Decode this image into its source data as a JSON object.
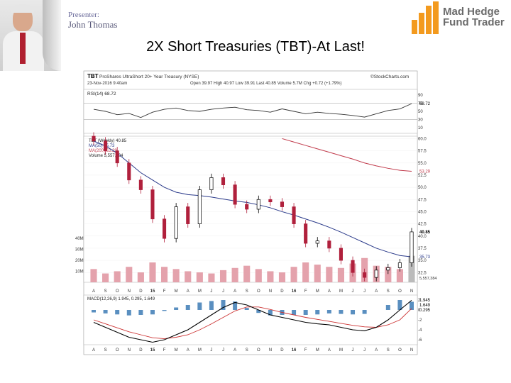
{
  "header": {
    "presenter_label": "Presenter:",
    "presenter_name": "John Thomas",
    "logo_line1": "Mad Hedge",
    "logo_line2": "Fund Trader"
  },
  "slide": {
    "title": "2X Short Treasuries (TBT)-At Last!"
  },
  "colors": {
    "price_up": "#000000",
    "price_down": "#b0203c",
    "ma50": "#2a3a8a",
    "ma200": "#c0394a",
    "volume": "#e4a2ac",
    "rsi": "#333333",
    "macd": "#000000",
    "macd_signal": "#cc3333",
    "histogram": "#5a8fc0",
    "logo_orange": "#f39a1e"
  },
  "chart_data": {
    "type": "line",
    "source": "©StockCharts.com",
    "ticker": "TBT",
    "name": "ProShares UltraShort 20+ Year Treasury (NYSE)",
    "date": "23-Nov-2016 9:40am",
    "quote": {
      "open": "39.97",
      "high": "40.97",
      "low": "39.91",
      "last": "40.85",
      "volume": "5.7M",
      "chg": "+0.72 (+1.79%)"
    },
    "rsi_panel": {
      "label": "RSI(14) 68.72",
      "ticks": [
        "90",
        "70",
        "50",
        "30",
        "10"
      ],
      "last_label": "68.72",
      "x": [
        "A",
        "S",
        "O",
        "N",
        "D",
        "15",
        "F",
        "M",
        "A",
        "M",
        "J",
        "J",
        "A",
        "S",
        "O",
        "N",
        "D",
        "16",
        "F",
        "M",
        "A",
        "M",
        "J",
        "J",
        "A",
        "S",
        "O",
        "N"
      ],
      "values": [
        55,
        50,
        42,
        45,
        35,
        48,
        55,
        58,
        52,
        50,
        55,
        58,
        60,
        54,
        52,
        48,
        56,
        50,
        44,
        48,
        45,
        43,
        40,
        36,
        44,
        52,
        56,
        68.72
      ]
    },
    "price_panel": {
      "legend": [
        "TBT (Weekly) 40.85",
        "MA(50) 35.73",
        "MA(200) 53.29",
        "Volume 5,557,384"
      ],
      "ticks": [
        "60.0",
        "57.5",
        "55.0",
        "52.5",
        "50.0",
        "47.5",
        "45.0",
        "42.5",
        "40.0",
        "37.5",
        "35.0",
        "32.5"
      ],
      "last_price_label": "40.85",
      "ma50_label": "35.73",
      "ma200_label": "53.29",
      "volume_label": "5,557,384",
      "volume_ticks": [
        "40M",
        "30M",
        "20M",
        "10M"
      ],
      "ylim": [
        30.5,
        60.5
      ],
      "x": [
        "A",
        "S",
        "O",
        "N",
        "D",
        "15",
        "F",
        "M",
        "A",
        "M",
        "J",
        "J",
        "A",
        "S",
        "O",
        "N",
        "D",
        "16",
        "F",
        "M",
        "A",
        "M",
        "J",
        "J",
        "A",
        "S",
        "O",
        "N"
      ],
      "close": [
        59.5,
        57.5,
        55.0,
        51.5,
        49.5,
        43.5,
        39.5,
        46.0,
        42.5,
        49.5,
        52.0,
        50.5,
        46.5,
        45.5,
        47.5,
        47.0,
        46.0,
        42.5,
        38.5,
        39.0,
        37.5,
        35.0,
        32.5,
        31.5,
        33.0,
        33.5,
        34.5,
        40.85
      ],
      "ma50": [
        59.5,
        58.5,
        57.0,
        55.0,
        53.0,
        51.5,
        50.0,
        49.0,
        48.5,
        48.3,
        48.0,
        47.6,
        47.2,
        46.9,
        46.4,
        45.8,
        45.0,
        44.3,
        43.5,
        42.7,
        41.8,
        40.8,
        39.7,
        38.6,
        37.5,
        36.7,
        36.0,
        35.73
      ],
      "ma200": [
        null,
        null,
        null,
        null,
        null,
        null,
        null,
        null,
        null,
        null,
        null,
        null,
        null,
        null,
        null,
        null,
        60.0,
        59.3,
        58.6,
        57.9,
        57.2,
        56.5,
        55.8,
        55.0,
        54.4,
        53.9,
        53.5,
        53.29
      ],
      "volume_millions": [
        12,
        8,
        10,
        14,
        9,
        18,
        14,
        12,
        10,
        9,
        8,
        11,
        13,
        15,
        12,
        10,
        9,
        14,
        18,
        16,
        14,
        13,
        17,
        22,
        15,
        14,
        12,
        24
      ]
    },
    "macd_panel": {
      "label": "MACD(12,26,9) 1.945, 0.295, 1.649",
      "ticks": [
        "2",
        "0",
        "-2",
        "-4",
        "-6"
      ],
      "last_labels": [
        "1.945",
        "1.649",
        "0.295"
      ],
      "x": [
        "A",
        "S",
        "O",
        "N",
        "D",
        "15",
        "F",
        "M",
        "A",
        "M",
        "J",
        "J",
        "A",
        "S",
        "O",
        "N",
        "D",
        "16",
        "F",
        "M",
        "A",
        "M",
        "J",
        "J",
        "A",
        "S",
        "O",
        "N"
      ],
      "macd": [
        -2.5,
        -3.5,
        -4.5,
        -5.5,
        -6.0,
        -6.5,
        -6.0,
        -5.0,
        -4.0,
        -2.5,
        -1.0,
        0.5,
        1.5,
        1.0,
        0.0,
        -1.0,
        -1.5,
        -2.0,
        -2.5,
        -2.8,
        -3.0,
        -3.5,
        -4.0,
        -4.2,
        -3.5,
        -2.0,
        0.0,
        1.945
      ],
      "signal": [
        -2.0,
        -2.8,
        -3.6,
        -4.4,
        -5.0,
        -5.6,
        -5.8,
        -5.5,
        -5.0,
        -4.0,
        -2.8,
        -1.5,
        -0.2,
        0.6,
        0.6,
        0.1,
        -0.5,
        -1.0,
        -1.5,
        -1.9,
        -2.3,
        -2.7,
        -3.1,
        -3.4,
        -3.5,
        -3.0,
        -2.0,
        0.295
      ],
      "histogram": [
        -0.5,
        -0.7,
        -0.9,
        -1.1,
        -1.0,
        -0.9,
        -0.2,
        0.5,
        1.0,
        1.5,
        1.8,
        2.0,
        1.7,
        0.4,
        -0.6,
        -1.1,
        -1.0,
        -1.0,
        -1.0,
        -0.9,
        -0.7,
        -0.8,
        -0.9,
        -0.8,
        0.0,
        1.0,
        2.0,
        1.649
      ]
    },
    "x_axis_labels": [
      "A",
      "S",
      "O",
      "N",
      "D",
      "15",
      "F",
      "M",
      "A",
      "M",
      "J",
      "J",
      "A",
      "S",
      "O",
      "N",
      "D",
      "16",
      "F",
      "M",
      "A",
      "M",
      "J",
      "J",
      "A",
      "S",
      "O",
      "N"
    ]
  }
}
